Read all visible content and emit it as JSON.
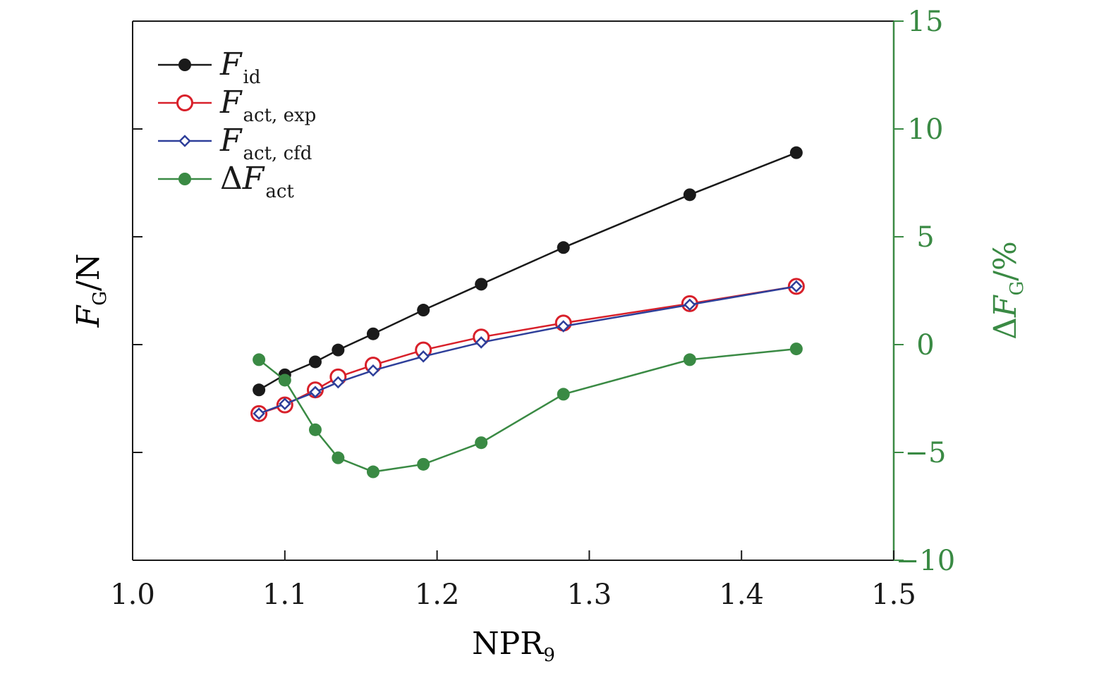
{
  "chart_data": {
    "type": "line",
    "xlabel": "NPR",
    "xlabel_sub": "9",
    "ylabel": "F",
    "ylabel_sub": "G",
    "ylabel_unit": "/N",
    "y2label_prefix": "Δ",
    "y2label": "F",
    "y2label_sub": "G",
    "y2label_unit": "/%",
    "xlim": [
      1.0,
      1.5
    ],
    "xticks": [
      1.0,
      1.1,
      1.2,
      1.3,
      1.4,
      1.5
    ],
    "xtick_labels": [
      "1.0",
      "1.1",
      "1.2",
      "1.3",
      "1.4",
      "1.5"
    ],
    "ylim": [
      -10,
      15
    ],
    "yticks": [
      -5,
      0,
      5,
      10
    ],
    "y2lim": [
      -10,
      15
    ],
    "y2ticks": [
      -10,
      -5,
      0,
      5,
      10,
      15
    ],
    "y2tick_labels": [
      "−10",
      "−5",
      "0",
      "5",
      "10",
      "15"
    ],
    "legend_position": "top-left",
    "colors": {
      "axis": "#1a1a1a",
      "secondary_axis": "#3a8a44"
    },
    "series": [
      {
        "name": "F_id",
        "label": "F",
        "label_sub": "id",
        "label_prefix": "",
        "axis": "left",
        "color": "#1a1a1a",
        "marker": "filled-circle",
        "x": [
          1.083,
          1.1,
          1.12,
          1.135,
          1.158,
          1.191,
          1.229,
          1.283,
          1.366,
          1.436
        ],
        "y": [
          -2.1,
          -1.4,
          -0.8,
          -0.25,
          0.5,
          1.6,
          2.8,
          4.5,
          6.95,
          8.9
        ]
      },
      {
        "name": "F_act,exp",
        "label": "F",
        "label_sub": "act, exp",
        "label_prefix": "",
        "axis": "left",
        "color": "#d8202a",
        "marker": "open-circle",
        "x": [
          1.083,
          1.1,
          1.12,
          1.135,
          1.158,
          1.191,
          1.229,
          1.283,
          1.366,
          1.436
        ],
        "y": [
          -3.2,
          -2.8,
          -2.1,
          -1.5,
          -0.95,
          -0.25,
          0.35,
          1.0,
          1.9,
          2.7
        ]
      },
      {
        "name": "F_act,cfd",
        "label": "F",
        "label_sub": "act, cfd",
        "label_prefix": "",
        "axis": "left",
        "color": "#2e3f9a",
        "marker": "open-diamond",
        "x": [
          1.083,
          1.1,
          1.12,
          1.135,
          1.158,
          1.191,
          1.229,
          1.283,
          1.366,
          1.436
        ],
        "y": [
          -3.2,
          -2.75,
          -2.2,
          -1.75,
          -1.2,
          -0.55,
          0.1,
          0.85,
          1.85,
          2.7
        ]
      },
      {
        "name": "ΔF_act",
        "label": "F",
        "label_sub": "act",
        "label_prefix": "Δ",
        "axis": "right",
        "color": "#3a8a44",
        "marker": "filled-circle",
        "x": [
          1.083,
          1.1,
          1.12,
          1.135,
          1.158,
          1.191,
          1.229,
          1.283,
          1.366,
          1.436
        ],
        "y": [
          -0.7,
          -1.65,
          -3.95,
          -5.25,
          -5.9,
          -5.55,
          -4.55,
          -2.3,
          -0.7,
          -0.2
        ]
      }
    ]
  }
}
